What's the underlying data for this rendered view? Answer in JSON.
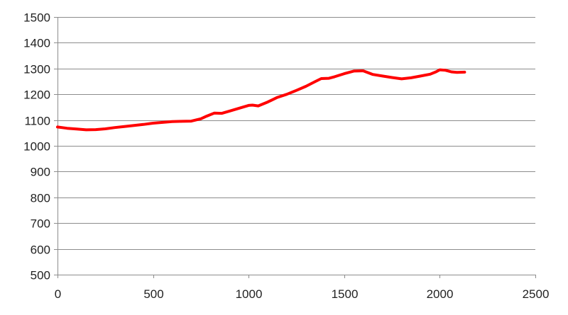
{
  "chart_data": {
    "type": "line",
    "title": "",
    "xlabel": "",
    "ylabel": "",
    "xlim": [
      0,
      2500
    ],
    "ylim": [
      500,
      1500
    ],
    "x_ticks": [
      0,
      500,
      1000,
      1500,
      2000,
      2500
    ],
    "y_ticks": [
      500,
      600,
      700,
      800,
      900,
      1000,
      1100,
      1200,
      1300,
      1400,
      1500
    ],
    "grid": "horizontal",
    "legend": "none",
    "series": [
      {
        "color": "#ff0000",
        "x": [
          0,
          50,
          100,
          150,
          200,
          250,
          300,
          350,
          400,
          450,
          500,
          550,
          600,
          650,
          700,
          750,
          780,
          820,
          860,
          900,
          950,
          1000,
          1020,
          1050,
          1100,
          1150,
          1200,
          1250,
          1300,
          1350,
          1380,
          1420,
          1450,
          1500,
          1550,
          1600,
          1650,
          1700,
          1750,
          1800,
          1850,
          1900,
          1950,
          1980,
          2000,
          2030,
          2060,
          2090,
          2130
        ],
        "y": [
          1073,
          1068,
          1065,
          1062,
          1063,
          1066,
          1071,
          1075,
          1079,
          1083,
          1088,
          1091,
          1094,
          1095,
          1096,
          1105,
          1115,
          1127,
          1126,
          1135,
          1146,
          1157,
          1158,
          1155,
          1170,
          1188,
          1200,
          1215,
          1231,
          1250,
          1261,
          1262,
          1268,
          1280,
          1290,
          1291,
          1277,
          1271,
          1265,
          1260,
          1264,
          1271,
          1278,
          1287,
          1295,
          1293,
          1287,
          1285,
          1286
        ]
      }
    ]
  }
}
